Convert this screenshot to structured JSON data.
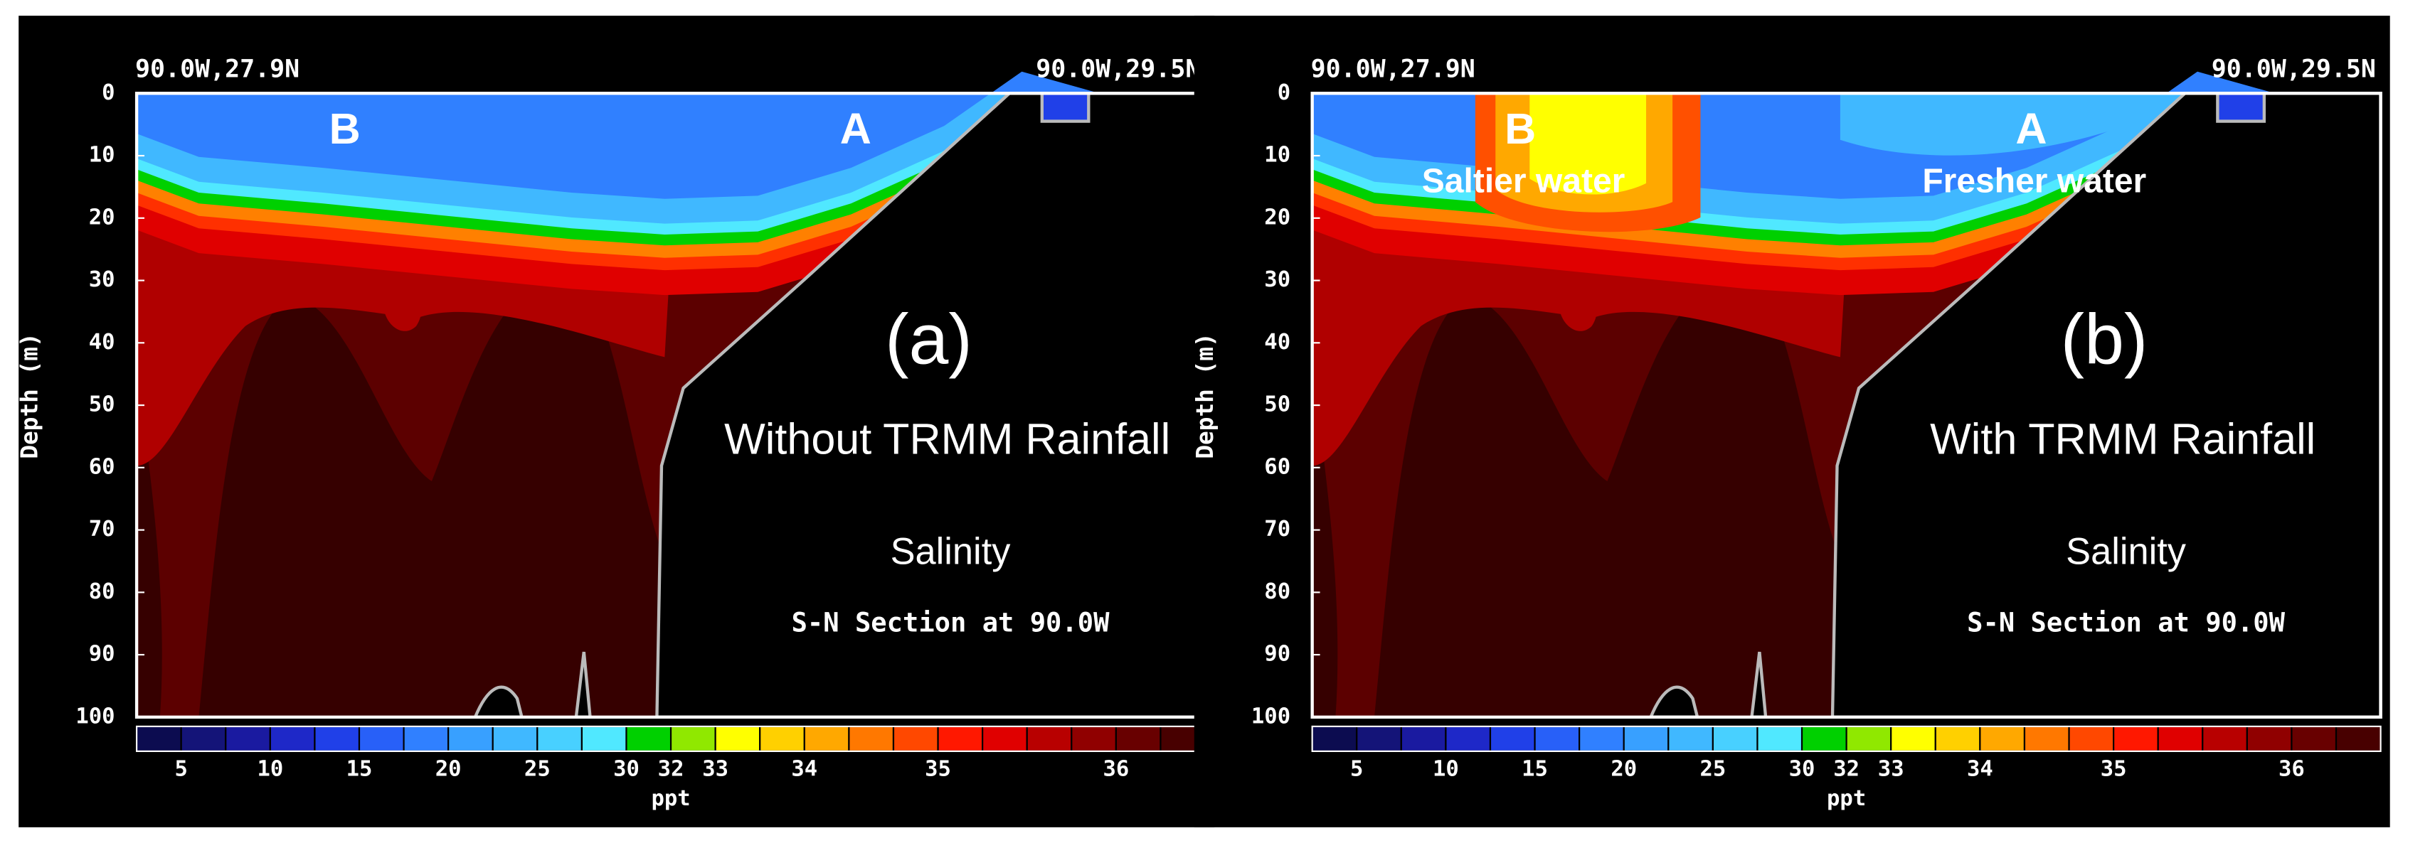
{
  "chart_data": [
    {
      "type": "contour",
      "left_label": "90.0W,27.9N",
      "right_label": "90.0W,29.5N",
      "y_label": "Depth (m)",
      "ylim": [
        0,
        100
      ],
      "yticks": [
        0,
        10,
        20,
        30,
        40,
        50,
        60,
        70,
        80,
        90,
        100
      ],
      "markers": [
        "B",
        "A"
      ],
      "annotations": [],
      "panel_label": "(a)",
      "caption": "Without TRMM Rainfall",
      "variable": "Salinity",
      "section": "S-N Section at 90.0W",
      "colorbar": {
        "label": "ppt",
        "ticks": [
          5,
          10,
          15,
          20,
          25,
          30,
          32,
          33,
          34,
          35,
          36
        ],
        "colors": [
          "#0c0c50",
          "#141478",
          "#1a1aa0",
          "#1e28c8",
          "#2040e8",
          "#2860f8",
          "#3080ff",
          "#38a0ff",
          "#40b8ff",
          "#48d0ff",
          "#50e8ff",
          "#00d000",
          "#90e800",
          "#ffff00",
          "#ffd000",
          "#ffa800",
          "#ff7800",
          "#ff4800",
          "#ff1800",
          "#e00000",
          "#b80000",
          "#900000",
          "#680000",
          "#480000"
        ]
      }
    },
    {
      "type": "contour",
      "left_label": "90.0W,27.9N",
      "right_label": "90.0W,29.5N",
      "y_label": "Depth (m)",
      "ylim": [
        0,
        100
      ],
      "yticks": [
        0,
        10,
        20,
        30,
        40,
        50,
        60,
        70,
        80,
        90,
        100
      ],
      "markers": [
        "B",
        "A"
      ],
      "annotations": [
        "Saltier water",
        "Fresher water"
      ],
      "panel_label": "(b)",
      "caption": "With TRMM Rainfall",
      "variable": "Salinity",
      "section": "S-N Section at 90.0W",
      "colorbar": {
        "label": "ppt",
        "ticks": [
          5,
          10,
          15,
          20,
          25,
          30,
          32,
          33,
          34,
          35,
          36
        ],
        "colors": [
          "#0c0c50",
          "#141478",
          "#1a1aa0",
          "#1e28c8",
          "#2040e8",
          "#2860f8",
          "#3080ff",
          "#38a0ff",
          "#40b8ff",
          "#48d0ff",
          "#50e8ff",
          "#00d000",
          "#90e800",
          "#ffff00",
          "#ffd000",
          "#ffa800",
          "#ff7800",
          "#ff4800",
          "#ff1800",
          "#e00000",
          "#b80000",
          "#900000",
          "#680000",
          "#480000"
        ]
      }
    }
  ]
}
